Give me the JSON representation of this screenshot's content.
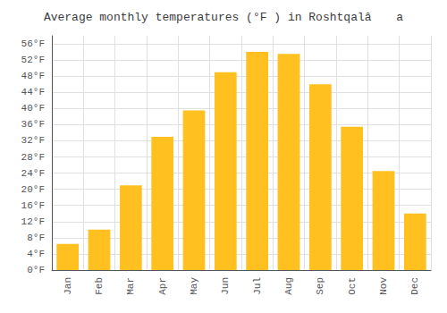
{
  "chart_data": {
    "type": "bar",
    "title": "Average monthly temperatures (°F ) in Roshtqalâ a",
    "categories": [
      "Jan",
      "Feb",
      "Mar",
      "Apr",
      "May",
      "Jun",
      "Jul",
      "Aug",
      "Sep",
      "Oct",
      "Nov",
      "Dec"
    ],
    "values": [
      6.5,
      10.0,
      21.0,
      33.0,
      39.5,
      49.0,
      54.0,
      53.5,
      46.0,
      35.5,
      24.5,
      14.0
    ],
    "color": "#FFC020",
    "ylim": [
      0,
      58
    ],
    "yticks": [
      {
        "value": 0,
        "label": "0°F"
      },
      {
        "value": 4,
        "label": "4°F"
      },
      {
        "value": 8,
        "label": "8°F"
      },
      {
        "value": 12,
        "label": "12°F"
      },
      {
        "value": 16,
        "label": "16°F"
      },
      {
        "value": 20,
        "label": "20°F"
      },
      {
        "value": 24,
        "label": "24°F"
      },
      {
        "value": 28,
        "label": "28°F"
      },
      {
        "value": 32,
        "label": "32°F"
      },
      {
        "value": 36,
        "label": "36°F"
      },
      {
        "value": 40,
        "label": "40°F"
      },
      {
        "value": 44,
        "label": "44°F"
      },
      {
        "value": 48,
        "label": "48°F"
      },
      {
        "value": 52,
        "label": "52°F"
      },
      {
        "value": 56,
        "label": "56°F"
      }
    ],
    "grid": true
  }
}
